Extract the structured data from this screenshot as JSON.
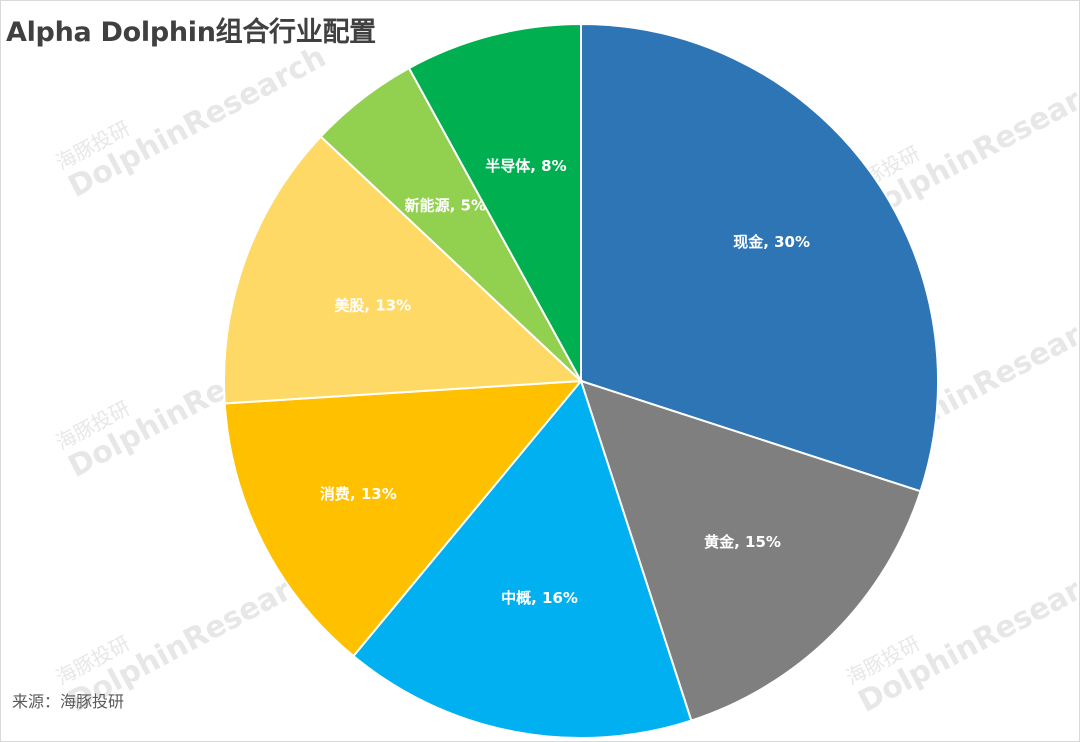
{
  "title": "Alpha Dolphin组合行业配置",
  "source": "来源：海豚投研",
  "watermark": {
    "cn": "海豚投研",
    "en": "DolphinResearch"
  },
  "chart_data": {
    "type": "pie",
    "title": "Alpha Dolphin组合行业配置",
    "slices": [
      {
        "label": "现金",
        "value": 30,
        "text": "现金, 30%",
        "color": "#2e75b6"
      },
      {
        "label": "黄金",
        "value": 15,
        "text": "黄金, 15%",
        "color": "#7f7f7f"
      },
      {
        "label": "中概",
        "value": 16,
        "text": "中概, 16%",
        "color": "#00b0f0"
      },
      {
        "label": "消费",
        "value": 13,
        "text": "消费, 13%",
        "color": "#ffc000"
      },
      {
        "label": "美股",
        "value": 13,
        "text": "美股, 13%",
        "color": "#ffd966"
      },
      {
        "label": "新能源",
        "value": 5,
        "text": "新能源, 5%",
        "color": "#92d050"
      },
      {
        "label": "半导体",
        "value": 8,
        "text": "半导体, 8%",
        "color": "#00b050"
      }
    ]
  }
}
